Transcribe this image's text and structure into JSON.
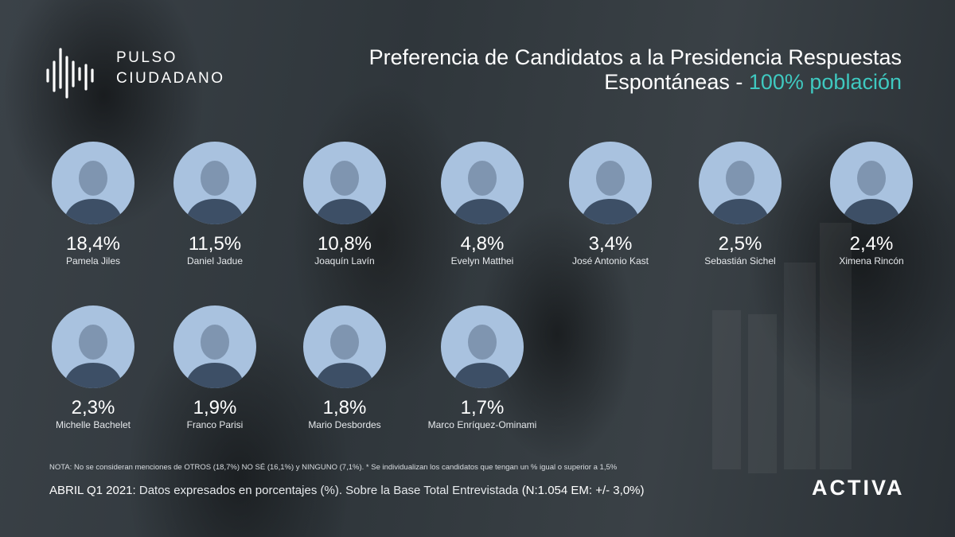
{
  "brand": {
    "logo_line1": "PULSO",
    "logo_line2": "CIUDADANO",
    "activa_logo": "ACTIVA"
  },
  "title": {
    "line1": "Preferencia de Candidatos a la Presidencia Respuestas",
    "line2_main": "Espontáneas  - ",
    "line2_accent": "100% población",
    "accent_color": "#3fc9c0"
  },
  "candidates": [
    {
      "name": "Pamela Jiles",
      "pct": "18,4%",
      "value": 18.4
    },
    {
      "name": "Daniel Jadue",
      "pct": "11,5%",
      "value": 11.5
    },
    {
      "name": "Joaquín Lavín",
      "pct": "10,8%",
      "value": 10.8
    },
    {
      "name": "Evelyn Matthei",
      "pct": "4,8%",
      "value": 4.8
    },
    {
      "name": "José Antonio Kast",
      "pct": "3,4%",
      "value": 3.4
    },
    {
      "name": "Sebastián Sichel",
      "pct": "2,5%",
      "value": 2.5
    },
    {
      "name": "Ximena Rincón",
      "pct": "2,4%",
      "value": 2.4
    },
    {
      "name": "Michelle Bachelet",
      "pct": "2,3%",
      "value": 2.3
    },
    {
      "name": "Franco Parisi",
      "pct": "1,9%",
      "value": 1.9
    },
    {
      "name": "Mario Desbordes",
      "pct": "1,8%",
      "value": 1.8
    },
    {
      "name": "Marco Enríquez-Ominami",
      "pct": "1,7%",
      "value": 1.7
    }
  ],
  "note": "NOTA: No se consideran menciones de OTROS (18,7%) NO SÉ (16,1%) y NINGUNO (7,1%).  * Se individualizan los candidatos que tengan un % igual o superior a 1,5%",
  "footer": {
    "period": "ABRIL Q1 2021:",
    "description": "Datos expresados en porcentajes (%). Sobre la Base Total Entrevistada",
    "base": "(N:1.054 EM: +/- 3,0%)"
  }
}
